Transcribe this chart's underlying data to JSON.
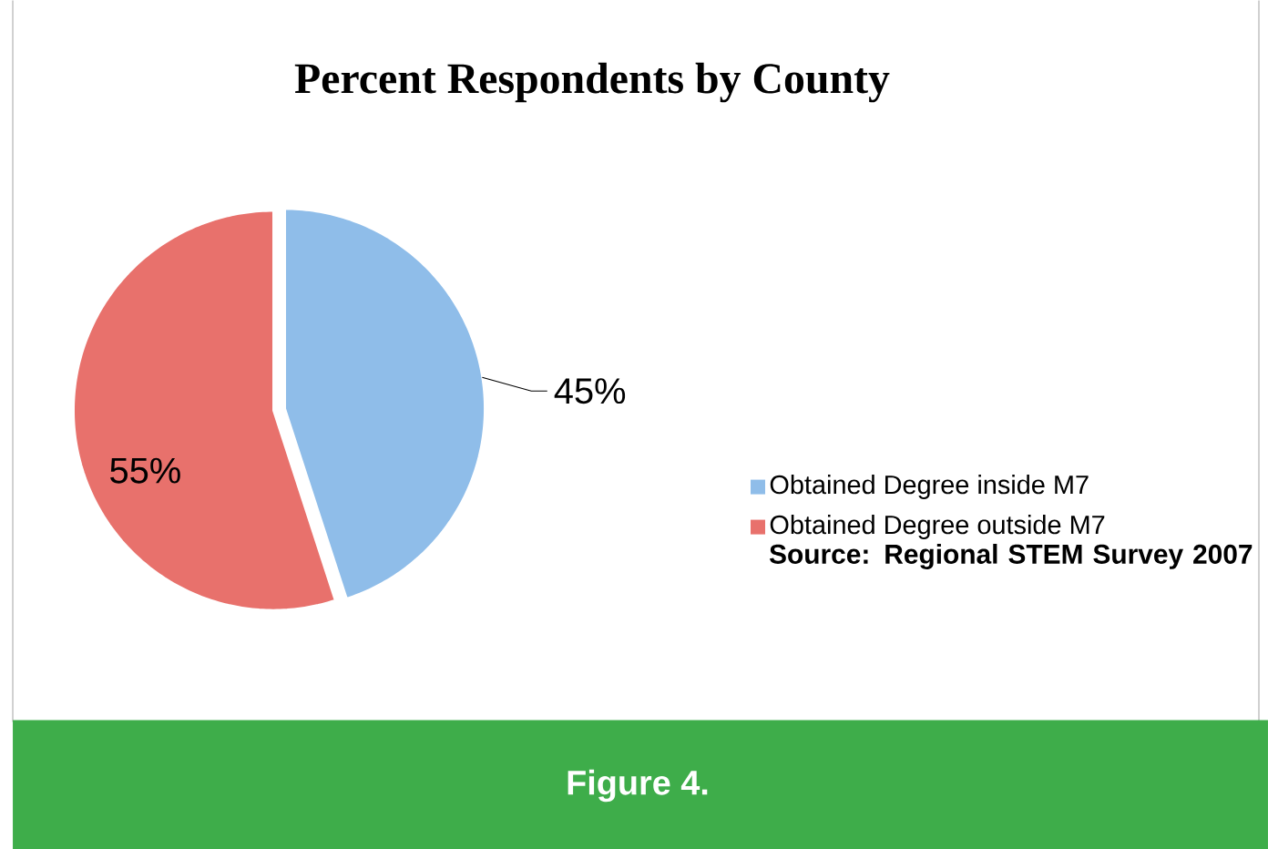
{
  "chart_data": {
    "type": "pie",
    "title": "Percent Respondents by County",
    "categories": [
      "Obtained Degree inside M7",
      "Obtained Degree outside M7"
    ],
    "values": [
      45,
      55
    ],
    "value_labels": [
      "45%",
      "55%"
    ],
    "colors": [
      "#8fbde9",
      "#e8716c"
    ],
    "legend": "right",
    "annotations": [
      "Source: Regional STEM Survey 2007",
      "Figure 4."
    ]
  }
}
